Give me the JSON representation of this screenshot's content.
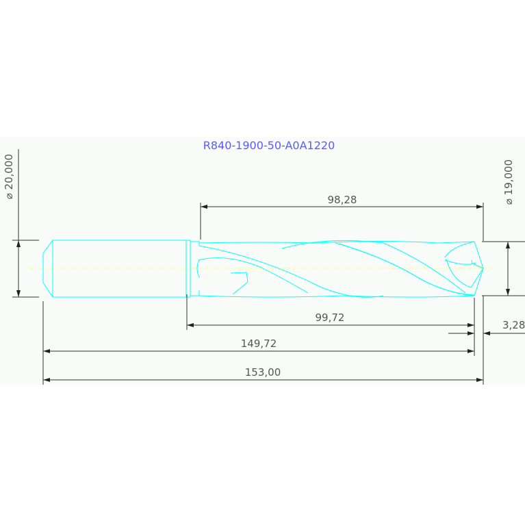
{
  "title": "R840-1900-50-A0A1220",
  "dimensions": {
    "shank_diameter": "⌀ 20,000",
    "body_diameter": "⌀ 19,000",
    "flute_length": "98,28",
    "body_length": "99,72",
    "length_to_tip_start": "149,72",
    "overall_length": "153,00",
    "tip_length": "3,28"
  },
  "colors": {
    "title": "#5a5aff",
    "geometry": "#00ffff",
    "centerline": "#ffff66",
    "dimension": "#333333",
    "sheet": "#f8fbf7"
  }
}
